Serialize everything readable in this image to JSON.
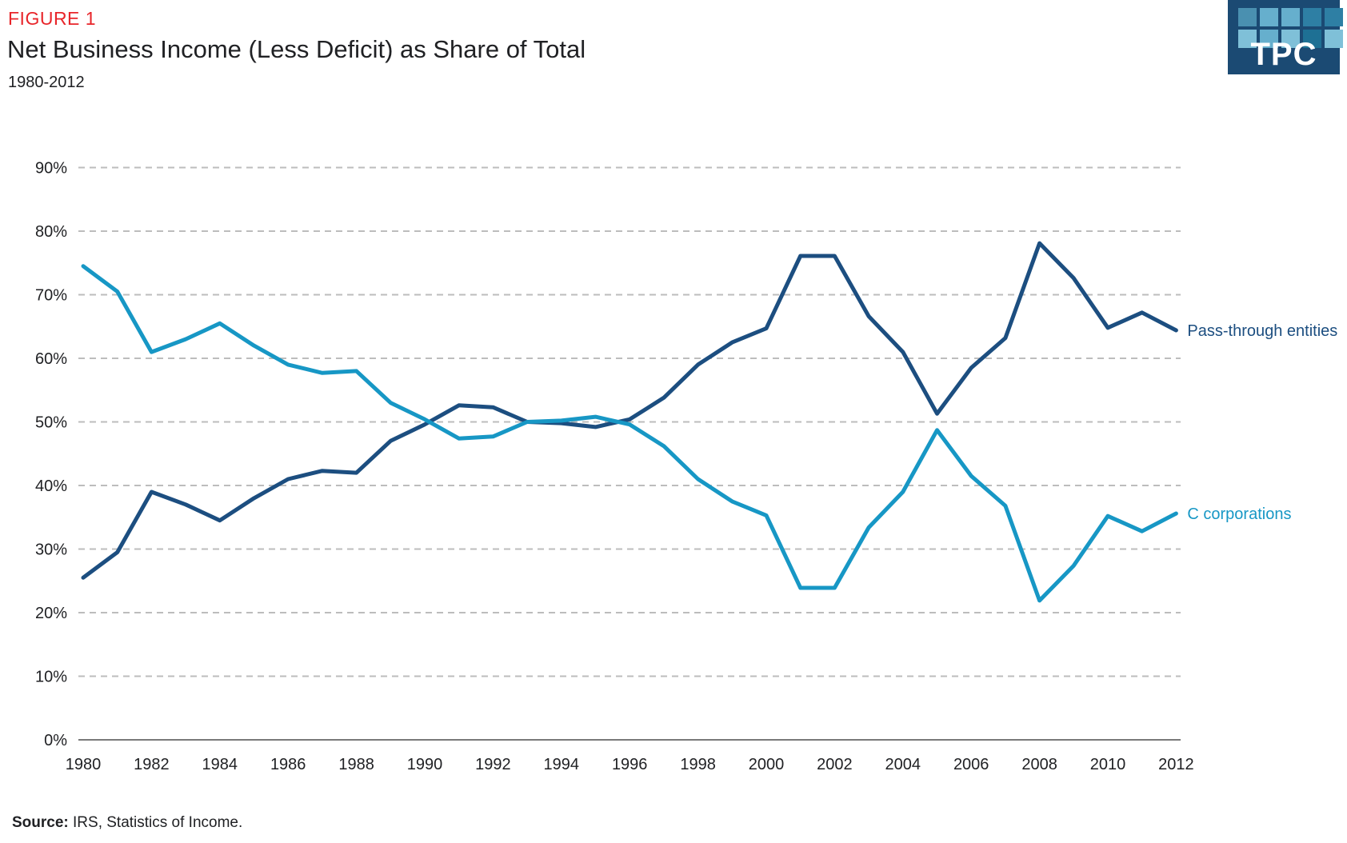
{
  "header": {
    "figure_label": "FIGURE 1",
    "title": "Net Business Income (Less Deficit) as Share of Total",
    "subtitle": "1980-2012",
    "logo_text": "TPC"
  },
  "source": {
    "label": "Source:",
    "text": " IRS, Statistics of Income."
  },
  "colors": {
    "figure_label_red": "#E8252A",
    "title_text": "#202124",
    "gridline": "#BDBDBD",
    "axis_line": "#4D4D4D",
    "tick_text": "#202124",
    "passthrough_line": "#1C4E80",
    "ccorp_line": "#1797C5",
    "logo_background": "#1B4A73",
    "logo_squares_row1": [
      "#4A90B0",
      "#66AFCD",
      "#66AFCD",
      "#2E7FA4",
      "#2E7FA4"
    ],
    "logo_squares_row2": [
      "#7FC0D8",
      "#66AFCD",
      "#7FC0D8",
      "#1E7094",
      "#7FC0D8"
    ]
  },
  "chart_data": {
    "type": "line",
    "title": "Net Business Income (Less Deficit) as Share of Total",
    "subtitle": "1980-2012",
    "x": [
      1980,
      1981,
      1982,
      1983,
      1984,
      1985,
      1986,
      1987,
      1988,
      1989,
      1990,
      1991,
      1992,
      1993,
      1994,
      1995,
      1996,
      1997,
      1998,
      1999,
      2000,
      2001,
      2002,
      2003,
      2004,
      2005,
      2006,
      2007,
      2008,
      2009,
      2010,
      2011,
      2012
    ],
    "series": [
      {
        "name": "Pass-through entities",
        "color": "#1C4E80",
        "values": [
          25.5,
          29.5,
          39.0,
          37.0,
          34.5,
          38.0,
          41.0,
          42.3,
          42.0,
          47.0,
          49.6,
          52.6,
          52.3,
          50.0,
          49.8,
          49.2,
          50.4,
          53.8,
          59.0,
          62.5,
          64.7,
          76.1,
          76.1,
          66.6,
          61.0,
          51.3,
          58.5,
          63.2,
          78.1,
          72.6,
          64.8,
          67.2,
          64.4
        ]
      },
      {
        "name": "C corporations",
        "color": "#1797C5",
        "values": [
          74.5,
          70.5,
          61.0,
          63.0,
          65.5,
          62.0,
          59.0,
          57.7,
          58.0,
          53.0,
          50.4,
          47.4,
          47.7,
          50.0,
          50.2,
          50.8,
          49.6,
          46.2,
          41.0,
          37.5,
          35.3,
          23.9,
          23.9,
          33.4,
          39.0,
          48.7,
          41.5,
          36.8,
          21.9,
          27.4,
          35.2,
          32.8,
          35.6
        ]
      }
    ],
    "xticks": [
      1980,
      1982,
      1984,
      1986,
      1988,
      1990,
      1992,
      1994,
      1996,
      1998,
      2000,
      2002,
      2004,
      2006,
      2008,
      2010,
      2012
    ],
    "yticks": [
      "0%",
      "10%",
      "20%",
      "30%",
      "40%",
      "50%",
      "60%",
      "70%",
      "80%",
      "90%"
    ],
    "ytick_values": [
      0,
      10,
      20,
      30,
      40,
      50,
      60,
      70,
      80,
      90
    ],
    "ylim": [
      0,
      90
    ],
    "xlabel": "",
    "ylabel": "",
    "grid": "horizontal-dashed",
    "legend_position": "right-of-line-end"
  }
}
